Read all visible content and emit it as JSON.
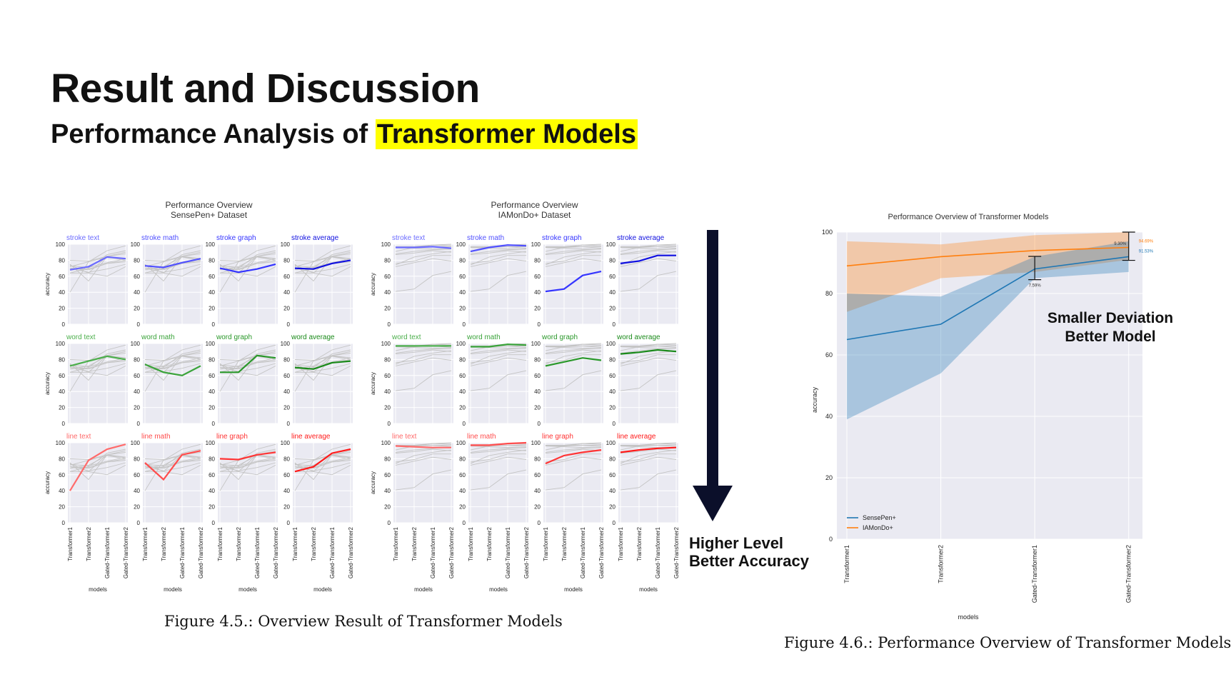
{
  "slide": {
    "title": "Result and Discussion",
    "subtitle_plain": "Performance Analysis of ",
    "subtitle_highlight": "Transformer Models",
    "highlight_color": "#ffff00",
    "caption_left": "Figure 4.5.: Overview Result of Transformer Models",
    "caption_right": "Figure 4.6.: Performance Overview of Transformer Models",
    "arrow_text": [
      "Higher Level",
      "Better Accuracy"
    ],
    "deviation_text": [
      "Smaller Deviation",
      "Better Model"
    ]
  },
  "chart_data": [
    {
      "type": "line",
      "title": "Performance Overview",
      "subtitle": "SensePen+ Dataset",
      "ylabel": "accuracy",
      "xlabel": "models",
      "categories": [
        "Transformer1",
        "Transformer2",
        "Gated-Transformer1",
        "Gated-Transformer2"
      ],
      "ylim": [
        0,
        100
      ],
      "yticks": [
        0,
        20,
        40,
        60,
        80,
        100
      ],
      "grid": true,
      "panels": [
        {
          "label": "stroke text",
          "color": "#6b6bff",
          "values": [
            68,
            72,
            84,
            82
          ]
        },
        {
          "label": "stroke math",
          "color": "#5050ff",
          "values": [
            73,
            71,
            77,
            82
          ]
        },
        {
          "label": "stroke graph",
          "color": "#3535ff",
          "values": [
            70,
            65,
            69,
            75
          ]
        },
        {
          "label": "stroke average",
          "color": "#1010e0",
          "values": [
            70,
            69,
            76,
            80
          ]
        },
        {
          "label": "word text",
          "color": "#4caf4c",
          "values": [
            72,
            78,
            84,
            80
          ]
        },
        {
          "label": "word math",
          "color": "#3aa33a",
          "values": [
            74,
            64,
            60,
            72
          ]
        },
        {
          "label": "word graph",
          "color": "#2a982a",
          "values": [
            64,
            64,
            85,
            82
          ]
        },
        {
          "label": "word average",
          "color": "#1a8a1a",
          "values": [
            70,
            68,
            76,
            78
          ]
        },
        {
          "label": "line text",
          "color": "#ff6b6b",
          "values": [
            40,
            78,
            92,
            98
          ]
        },
        {
          "label": "line math",
          "color": "#ff4d4d",
          "values": [
            75,
            54,
            85,
            90
          ]
        },
        {
          "label": "line graph",
          "color": "#ff3535",
          "values": [
            80,
            79,
            85,
            88
          ]
        },
        {
          "label": "line average",
          "color": "#ff1a1a",
          "values": [
            64,
            70,
            87,
            92
          ]
        }
      ]
    },
    {
      "type": "line",
      "title": "Performance Overview",
      "subtitle": "IAMonDo+ Dataset",
      "ylabel": "accuracy",
      "xlabel": "models",
      "categories": [
        "Transformer1",
        "Transformer2",
        "Gated-Transformer1",
        "Gated-Transformer2"
      ],
      "ylim": [
        0,
        100
      ],
      "yticks": [
        0,
        20,
        40,
        60,
        80,
        100
      ],
      "grid": true,
      "panels": [
        {
          "label": "stroke text",
          "color": "#6b6bff",
          "values": [
            96,
            96,
            97,
            95
          ]
        },
        {
          "label": "stroke math",
          "color": "#5050ff",
          "values": [
            91,
            96,
            99,
            98
          ]
        },
        {
          "label": "stroke graph",
          "color": "#3535ff",
          "values": [
            41,
            44,
            61,
            66
          ]
        },
        {
          "label": "stroke average",
          "color": "#1010e0",
          "values": [
            76,
            79,
            86,
            86
          ]
        },
        {
          "label": "word text",
          "color": "#4caf4c",
          "values": [
            97,
            97,
            97,
            97
          ]
        },
        {
          "label": "word math",
          "color": "#3aa33a",
          "values": [
            96,
            96,
            99,
            98
          ]
        },
        {
          "label": "word graph",
          "color": "#2a982a",
          "values": [
            72,
            77,
            82,
            79
          ]
        },
        {
          "label": "word average",
          "color": "#1a8a1a",
          "values": [
            87,
            89,
            92,
            90
          ]
        },
        {
          "label": "line text",
          "color": "#ff6b6b",
          "values": [
            96,
            95,
            94,
            94
          ]
        },
        {
          "label": "line math",
          "color": "#ff4d4d",
          "values": [
            97,
            97,
            99,
            100
          ]
        },
        {
          "label": "line graph",
          "color": "#ff3535",
          "values": [
            74,
            84,
            88,
            91
          ]
        },
        {
          "label": "line average",
          "color": "#ff1a1a",
          "values": [
            88,
            91,
            93,
            94
          ]
        }
      ]
    },
    {
      "type": "line",
      "title": "Performance Overview of Transformer Models",
      "xlabel": "models",
      "ylabel": "accuracy",
      "categories": [
        "Transformer1",
        "Transformer2",
        "Gated-Transformer1",
        "Gated-Transformer2"
      ],
      "ylim": [
        0,
        100
      ],
      "yticks": [
        0,
        20,
        40,
        60,
        80,
        100
      ],
      "grid": true,
      "legend_position": "bottom-left",
      "series": [
        {
          "name": "SensePen+",
          "color": "#1f77b4",
          "values": [
            65,
            70,
            88,
            92
          ],
          "upper": [
            80,
            79,
            92,
            97
          ],
          "lower": [
            39,
            54,
            85,
            87
          ]
        },
        {
          "name": "IAMonDo+",
          "color": "#ff7f0e",
          "values": [
            89,
            92,
            94,
            95
          ],
          "upper": [
            97,
            96,
            99,
            100
          ],
          "lower": [
            74,
            85,
            87,
            91
          ]
        }
      ],
      "error_bar_labels": [
        "7.59%",
        "9.30%"
      ],
      "end_labels": [
        "94.69%",
        "91.53%"
      ]
    }
  ]
}
